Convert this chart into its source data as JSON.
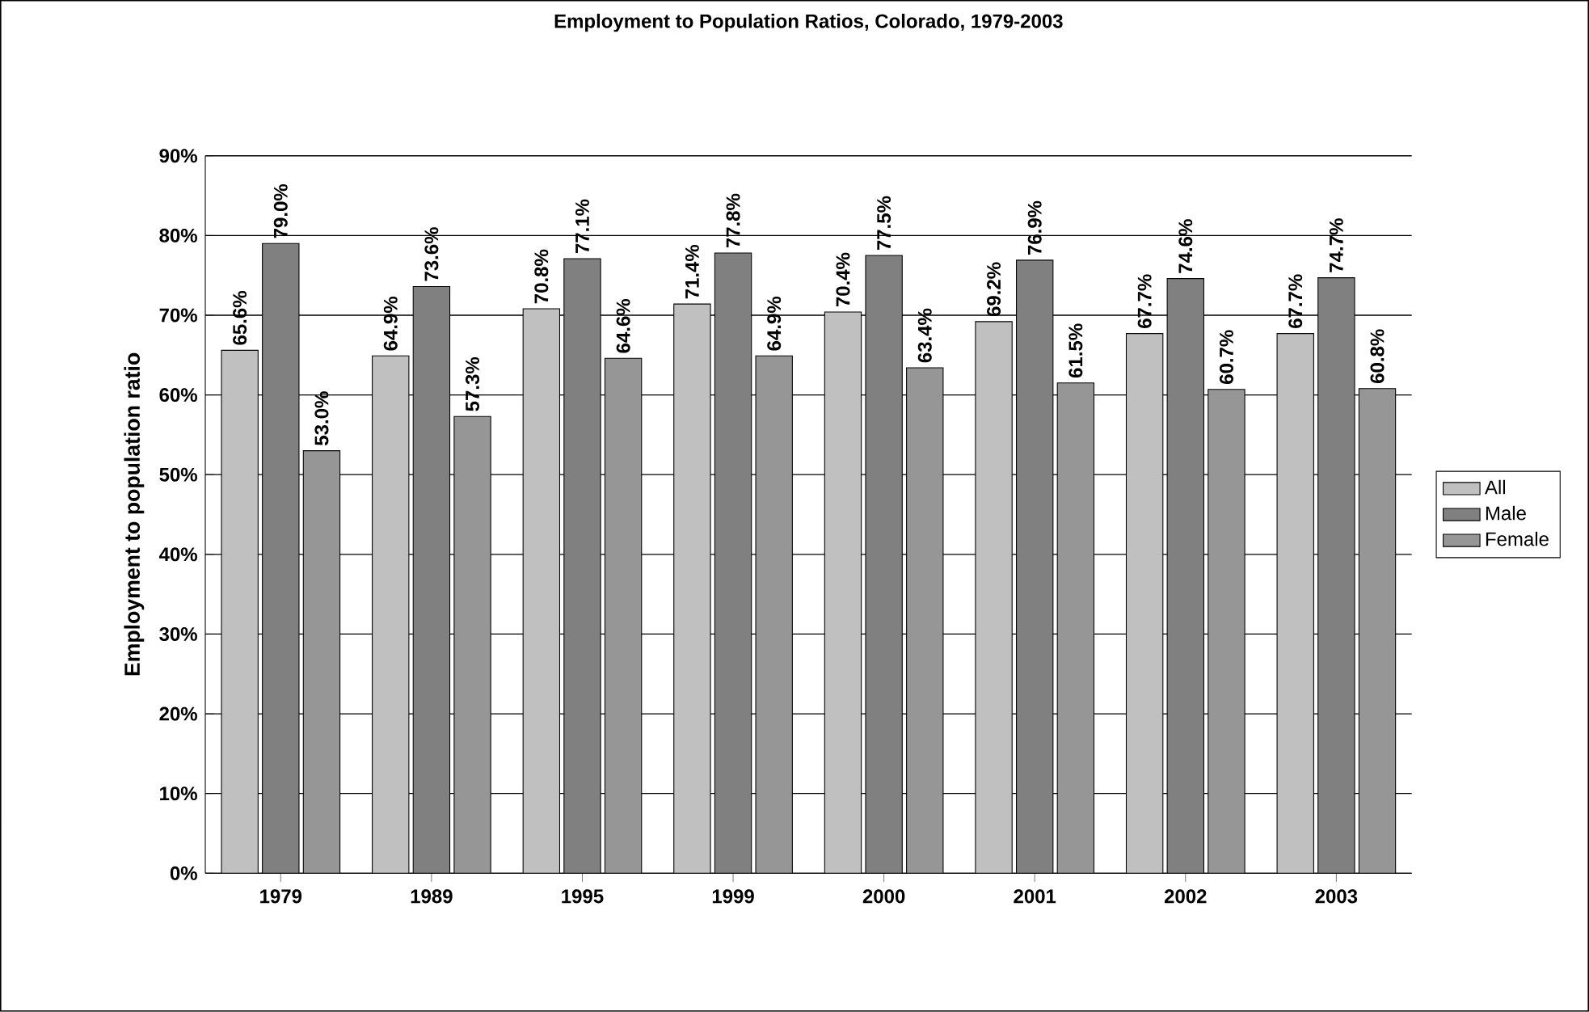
{
  "chart_data": {
    "type": "bar",
    "title": "Employment to Population Ratios, Colorado, 1979-2003",
    "ylabel": "Employment to population ratio",
    "categories": [
      "1979",
      "1989",
      "1995",
      "1999",
      "2000",
      "2001",
      "2002",
      "2003"
    ],
    "series": [
      {
        "name": "All",
        "color": "#c0c0c0",
        "values": [
          65.6,
          64.9,
          70.8,
          71.4,
          70.4,
          69.2,
          67.7,
          67.7
        ],
        "value_labels": [
          "65.6%",
          "64.9%",
          "70.8%",
          "71.4%",
          "70.4%",
          "69.2%",
          "67.7%",
          "67.7%"
        ]
      },
      {
        "name": "Male",
        "color": "#808080",
        "values": [
          79.0,
          73.6,
          77.1,
          77.8,
          77.5,
          76.9,
          74.6,
          74.7
        ],
        "value_labels": [
          "79.0%",
          "73.6%",
          "77.1%",
          "77.8%",
          "77.5%",
          "76.9%",
          "74.6%",
          "74.7%"
        ]
      },
      {
        "name": "Female",
        "color": "#969696",
        "values": [
          53.0,
          57.3,
          64.6,
          64.9,
          63.4,
          61.5,
          60.7,
          60.8
        ],
        "value_labels": [
          "53.0%",
          "57.3%",
          "64.6%",
          "64.9%",
          "63.4%",
          "61.5%",
          "60.7%",
          "60.8%"
        ]
      }
    ],
    "ylim": [
      0,
      90
    ],
    "yticks": [
      {
        "value": 0,
        "label": "0%"
      },
      {
        "value": 10,
        "label": "10%"
      },
      {
        "value": 20,
        "label": "20%"
      },
      {
        "value": 30,
        "label": "30%"
      },
      {
        "value": 40,
        "label": "40%"
      },
      {
        "value": 50,
        "label": "50%"
      },
      {
        "value": 60,
        "label": "60%"
      },
      {
        "value": 70,
        "label": "70%"
      },
      {
        "value": 80,
        "label": "80%"
      },
      {
        "value": 90,
        "label": "90%"
      }
    ],
    "grid": "y",
    "legend": "right"
  }
}
